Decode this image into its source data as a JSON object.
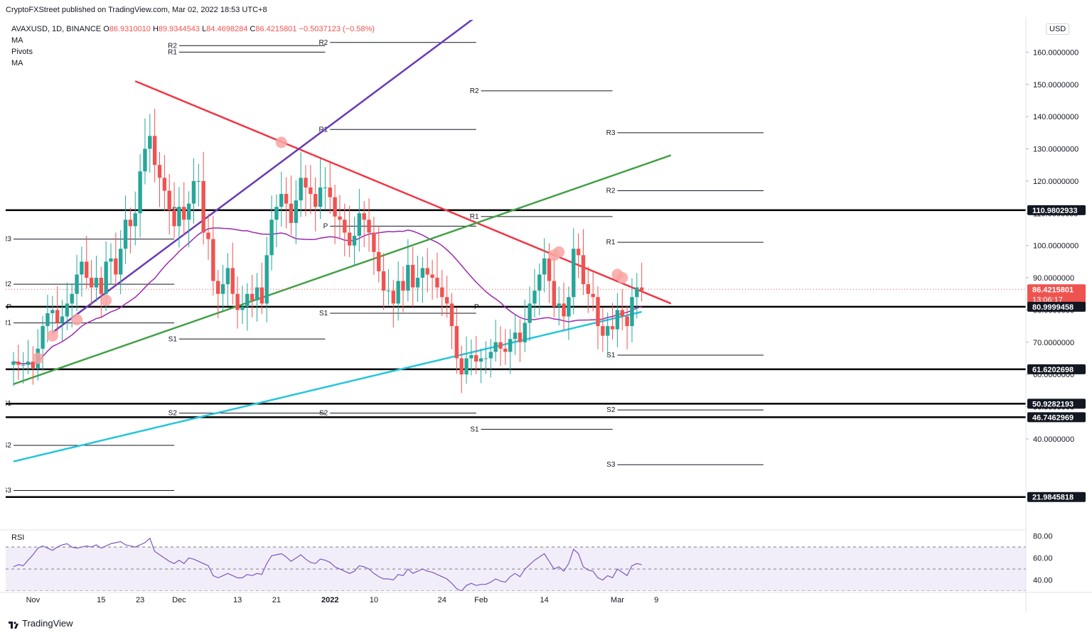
{
  "header": {
    "published": "CryptoFXStreet published on TradingView.com, Mar 02, 2022 18:53 UTC+8",
    "symbol": "AVAXUSD, 1D, BINANCE",
    "o_label": "O",
    "o_value": "86.9310010",
    "h_label": "H",
    "h_value": "89.9344543",
    "l_label": "L",
    "l_value": "84.4698284",
    "c_label": "C",
    "c_value": "86.4215801",
    "change": "−0.5037123 (−0.58%)",
    "indicators": [
      "MA",
      "Pivots",
      "MA"
    ],
    "currency": "USD"
  },
  "footer": {
    "brand": "TradingView"
  },
  "colors": {
    "bull": "#26a69a",
    "bear": "#ef5350",
    "ma_purple": "#9c27b0",
    "ma_cyan": "#26c6da",
    "trend_red": "#f23645",
    "trend_purple": "#673ab7",
    "trend_green": "#43a047",
    "level": "#000000",
    "rsi": "#7e57c2"
  },
  "chart_data": {
    "type": "candlestick",
    "title": "AVAXUSD, 1D, BINANCE",
    "ylim": [
      12,
      170
    ],
    "y_ticks": [
      40,
      50,
      60,
      70,
      80,
      90,
      100,
      110,
      120,
      130,
      140,
      150,
      160
    ],
    "y_tick_labels": [
      "40.0000000",
      "50.0000000",
      "60.0000000",
      "70.0000000",
      "80.0000000",
      "90.0000000",
      "100.0000000",
      "110.0000000",
      "120.0000000",
      "130.0000000",
      "140.0000000",
      "150.0000000",
      "160.0000000"
    ],
    "x_ticks": [
      {
        "label": "Nov",
        "date": "2021-11-01"
      },
      {
        "label": "15",
        "date": "2021-11-15"
      },
      {
        "label": "23",
        "date": "2021-11-23"
      },
      {
        "label": "Dec",
        "date": "2021-12-01"
      },
      {
        "label": "13",
        "date": "2021-12-13"
      },
      {
        "label": "21",
        "date": "2021-12-21"
      },
      {
        "label": "2022",
        "date": "2022-01-01"
      },
      {
        "label": "10",
        "date": "2022-01-10"
      },
      {
        "label": "24",
        "date": "2022-01-24"
      },
      {
        "label": "Feb",
        "date": "2022-02-01"
      },
      {
        "label": "14",
        "date": "2022-02-14"
      },
      {
        "label": "Mar",
        "date": "2022-03-01"
      },
      {
        "label": "9",
        "date": "2022-03-09"
      }
    ],
    "date_start": "2021-10-28",
    "closes": [
      64,
      63,
      63,
      64,
      62,
      68,
      75,
      79,
      80,
      76,
      78,
      82,
      85,
      91,
      95,
      90,
      87,
      90,
      85,
      95,
      96,
      91,
      99,
      108,
      106,
      110,
      123,
      130,
      134,
      125,
      121,
      117,
      111,
      106,
      112,
      108,
      113,
      120,
      120,
      104,
      102,
      89,
      85,
      88,
      93,
      85,
      80,
      81,
      85,
      83,
      87,
      82,
      97,
      108,
      112,
      116,
      113,
      107,
      114,
      121,
      118,
      116,
      112,
      118,
      118,
      115,
      109,
      108,
      104,
      100,
      103,
      110,
      108,
      104,
      98,
      92,
      86,
      86,
      82,
      89,
      86,
      94,
      87,
      90,
      93,
      91,
      90,
      87,
      84,
      82,
      75,
      65,
      60,
      65,
      66,
      64,
      65,
      65,
      67,
      70,
      68,
      67,
      71,
      73,
      70,
      76,
      82,
      86,
      91,
      96,
      89,
      81,
      82,
      78,
      84,
      99,
      97,
      88,
      85,
      84,
      75,
      72,
      75,
      74,
      80,
      78,
      75,
      84,
      87,
      86
    ],
    "price_labels": [
      {
        "value": 86.4215801,
        "label": "86.4215801",
        "sub": "13:06:17",
        "color": "#ef5350"
      },
      {
        "value": 110.9802933,
        "label": "110.9802933",
        "color": "#131722"
      },
      {
        "value": 80.9999458,
        "label": "80.9999458",
        "color": "#131722"
      },
      {
        "value": 61.6202698,
        "label": "61.6202698",
        "color": "#131722"
      },
      {
        "value": 50.9282193,
        "label": "50.9282193",
        "color": "#131722"
      },
      {
        "value": 46.7462969,
        "label": "46.7462969",
        "color": "#131722"
      },
      {
        "value": 21.9845818,
        "label": "21.9845818",
        "color": "#131722"
      }
    ],
    "horizontal_levels": [
      110.9802933,
      80.9999458,
      61.6202698,
      50.9282193,
      46.7462969,
      21.9845818
    ],
    "pivot_periods": [
      {
        "start": "2021-10-28",
        "end": "2021-11-30",
        "levels": [
          {
            "label": "R3",
            "value": 102
          },
          {
            "label": "R2",
            "value": 88
          },
          {
            "label": "P",
            "value": 81
          },
          {
            "label": "R1",
            "value": 76
          },
          {
            "label": "S1",
            "value": 51
          },
          {
            "label": "S2",
            "value": 38
          },
          {
            "label": "S3",
            "value": 24
          }
        ]
      },
      {
        "start": "2021-12-01",
        "end": "2021-12-31",
        "levels": [
          {
            "label": "R2",
            "value": 162
          },
          {
            "label": "R1",
            "value": 160
          },
          {
            "label": "P",
            "value": 111
          },
          {
            "label": "S1",
            "value": 71
          },
          {
            "label": "S2",
            "value": 48
          }
        ]
      },
      {
        "start": "2022-01-01",
        "end": "2022-01-31",
        "levels": [
          {
            "label": "R2",
            "value": 163
          },
          {
            "label": "R1",
            "value": 136
          },
          {
            "label": "P",
            "value": 106
          },
          {
            "label": "S1",
            "value": 79
          },
          {
            "label": "S2",
            "value": 48
          }
        ]
      },
      {
        "start": "2022-02-01",
        "end": "2022-02-28",
        "levels": [
          {
            "label": "R2",
            "value": 148
          },
          {
            "label": "R1",
            "value": 109
          },
          {
            "label": "P",
            "value": 81
          },
          {
            "label": "S1",
            "value": 43
          }
        ]
      },
      {
        "start": "2022-03-01",
        "end": "2022-03-31",
        "levels": [
          {
            "label": "R3",
            "value": 135
          },
          {
            "label": "R2",
            "value": 117
          },
          {
            "label": "R1",
            "value": 101
          },
          {
            "label": "S1",
            "value": 66
          },
          {
            "label": "S2",
            "value": 49
          },
          {
            "label": "S3",
            "value": 32
          }
        ]
      }
    ],
    "trendlines": [
      {
        "color": "#f23645",
        "from": {
          "date": "2021-11-22",
          "value": 151
        },
        "to": {
          "date": "2022-03-12",
          "value": 82
        }
      },
      {
        "color": "#673ab7",
        "from": {
          "date": "2021-11-05",
          "value": 73
        },
        "to": {
          "date": "2022-01-31",
          "value": 171
        }
      },
      {
        "color": "#43a047",
        "from": {
          "date": "2021-10-28",
          "value": 57
        },
        "to": {
          "date": "2022-03-12",
          "value": 128
        }
      }
    ],
    "touch_points": [
      {
        "date": "2021-11-02",
        "value": 65
      },
      {
        "date": "2021-11-05",
        "value": 72
      },
      {
        "date": "2021-11-10",
        "value": 77
      },
      {
        "date": "2021-11-16",
        "value": 83
      },
      {
        "date": "2021-12-22",
        "value": 132
      },
      {
        "date": "2022-02-16",
        "value": 97
      },
      {
        "date": "2022-02-17",
        "value": 98
      },
      {
        "date": "2022-03-01",
        "value": 91
      },
      {
        "date": "2022-03-02",
        "value": 90
      }
    ],
    "rsi": {
      "title": "RSI",
      "ylim": [
        30,
        85
      ],
      "band": [
        30,
        70
      ],
      "y_ticks": [
        40,
        60,
        80
      ],
      "y_tick_labels": [
        "40.00",
        "60.00",
        "80.00"
      ],
      "mid_line": 50,
      "values": [
        52,
        54,
        53,
        58,
        63,
        69,
        71,
        69,
        67,
        70,
        72,
        73,
        70,
        69,
        70,
        71,
        70,
        72,
        69,
        71,
        73,
        74,
        75,
        72,
        71,
        70,
        72,
        74,
        78,
        66,
        63,
        60,
        57,
        55,
        58,
        55,
        60,
        59,
        57,
        55,
        53,
        44,
        42,
        44,
        46,
        44,
        42,
        42,
        45,
        44,
        46,
        45,
        55,
        62,
        63,
        64,
        61,
        57,
        60,
        63,
        59,
        56,
        55,
        59,
        58,
        56,
        52,
        50,
        48,
        46,
        48,
        53,
        52,
        50,
        46,
        43,
        41,
        41,
        40,
        45,
        44,
        50,
        46,
        48,
        50,
        48,
        47,
        45,
        43,
        41,
        37,
        32,
        30,
        35,
        37,
        35,
        36,
        36,
        38,
        41,
        39,
        38,
        43,
        46,
        43,
        50,
        54,
        58,
        61,
        64,
        57,
        50,
        52,
        48,
        55,
        68,
        64,
        52,
        49,
        48,
        42,
        40,
        44,
        42,
        50,
        47,
        44,
        53,
        55,
        54
      ]
    }
  }
}
